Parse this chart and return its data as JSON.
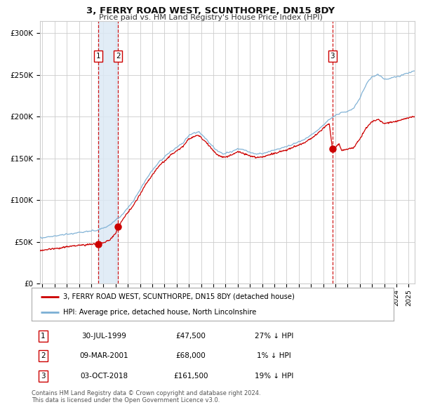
{
  "title": "3, FERRY ROAD WEST, SCUNTHORPE, DN15 8DY",
  "subtitle": "Price paid vs. HM Land Registry's House Price Index (HPI)",
  "title_fontsize": 9.5,
  "subtitle_fontsize": 8,
  "bg_color": "#ffffff",
  "plot_bg_color": "#ffffff",
  "grid_color": "#cccccc",
  "hpi_color": "#7bafd4",
  "price_color": "#cc0000",
  "vline_color": "#cc0000",
  "shade_color": "#dce9f5",
  "ylabel_vals": [
    0,
    50000,
    100000,
    150000,
    200000,
    250000,
    300000
  ],
  "ylabel_labels": [
    "£0",
    "£50K",
    "£100K",
    "£150K",
    "£200K",
    "£250K",
    "£300K"
  ],
  "xmin": 1994.8,
  "xmax": 2025.5,
  "ymin": 0,
  "ymax": 315000,
  "transactions": [
    {
      "label": "1",
      "date_dec": 1999.58,
      "price": 47500
    },
    {
      "label": "2",
      "date_dec": 2001.19,
      "price": 68000
    },
    {
      "label": "3",
      "date_dec": 2018.76,
      "price": 161500
    }
  ],
  "legend_line1": "3, FERRY ROAD WEST, SCUNTHORPE, DN15 8DY (detached house)",
  "legend_line2": "HPI: Average price, detached house, North Lincolnshire",
  "table_rows": [
    {
      "num": "1",
      "date": "30-JUL-1999",
      "price": "£47,500",
      "hpi": "27% ↓ HPI"
    },
    {
      "num": "2",
      "date": "09-MAR-2001",
      "price": "£68,000",
      "hpi": "1% ↓ HPI"
    },
    {
      "num": "3",
      "date": "03-OCT-2018",
      "price": "£161,500",
      "hpi": "19% ↓ HPI"
    }
  ],
  "footnote1": "Contains HM Land Registry data © Crown copyright and database right 2024.",
  "footnote2": "This data is licensed under the Open Government Licence v3.0."
}
